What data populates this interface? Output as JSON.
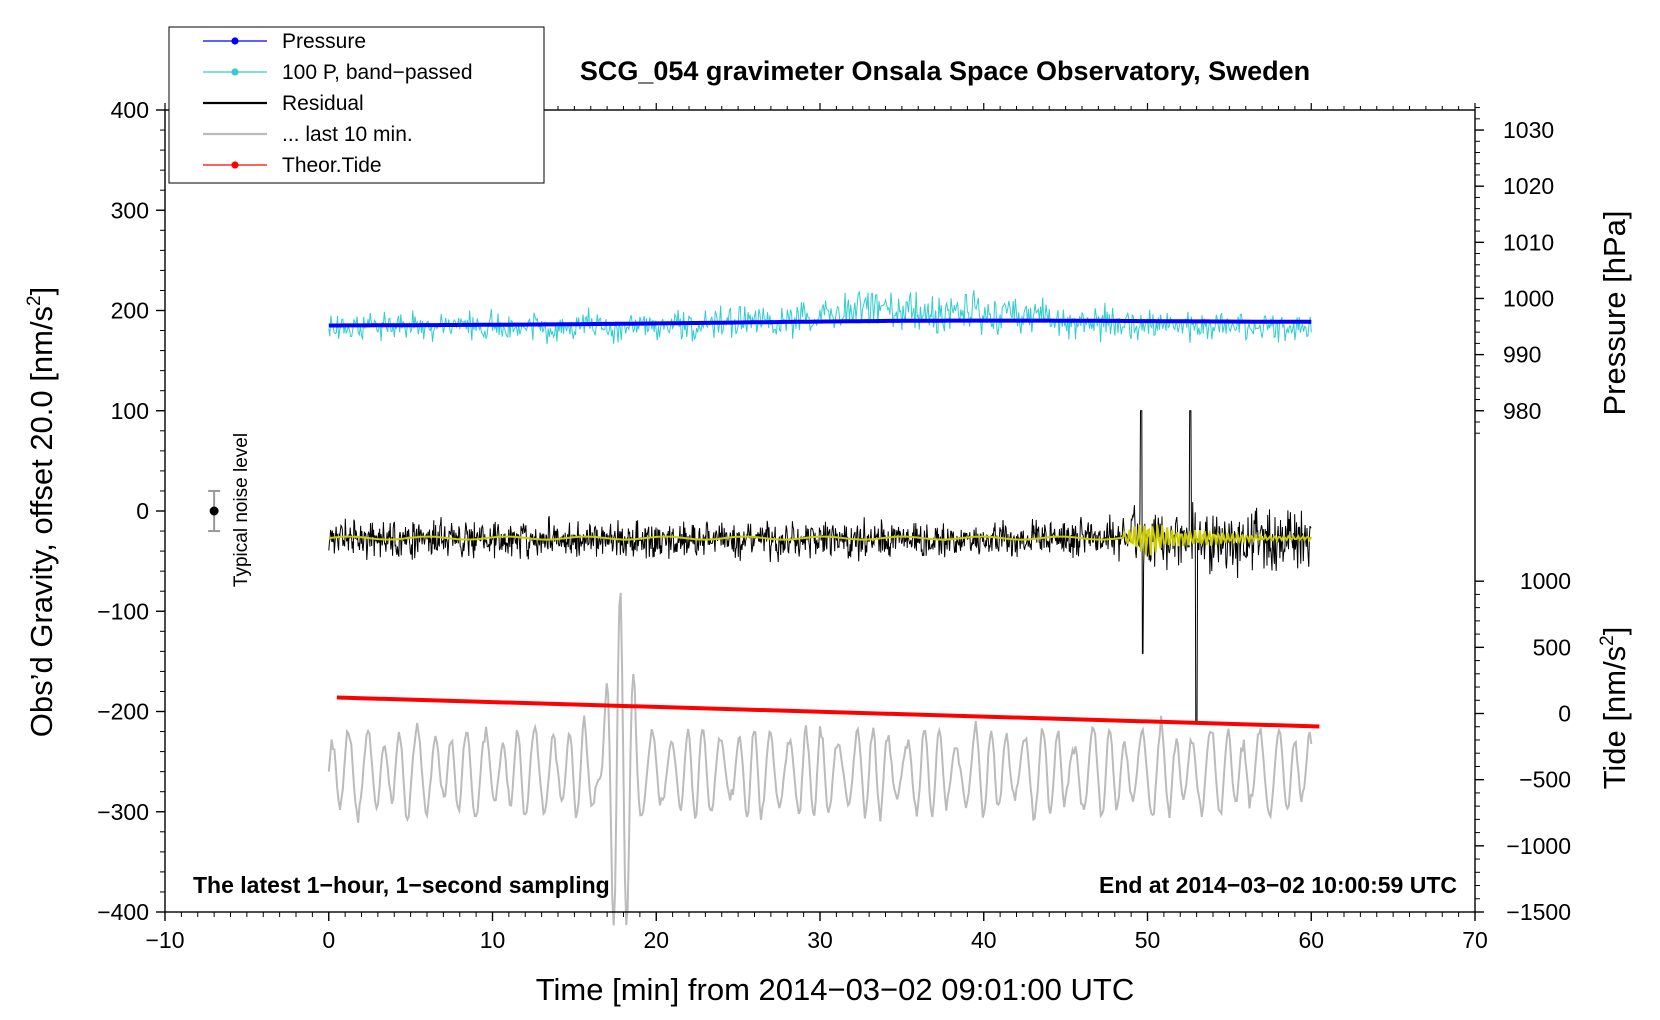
{
  "chart_data": {
    "type": "line",
    "title": "SCG_054 gravimeter Onsala Space Observatory, Sweden",
    "xlabel": "Time [min] from 2014−03−02 09:01:00 UTC",
    "ylabel": "Obs’d Gravity, offset 20.0 [nm/s²]",
    "ylabel_parts": {
      "main": "Obs’d Gravity, offset 20.0 [nm/s",
      "sup": "2",
      "end": "]"
    },
    "y2label": "Pressure [hPa]",
    "y3label_parts": {
      "main": "Tide [nm/s",
      "sup": "2",
      "end": "]"
    },
    "xlim": [
      -10,
      70
    ],
    "ylim": [
      -400,
      400
    ],
    "pressure_axis": {
      "range": [
        980,
        1030
      ],
      "maps_to_gravity": [
        100,
        380
      ]
    },
    "tide_axis": {
      "range": [
        -1500,
        1000
      ],
      "maps_to_gravity": [
        -400,
        -70
      ]
    },
    "x_ticks": [
      "−10",
      "0",
      "10",
      "20",
      "30",
      "40",
      "50",
      "60",
      "70"
    ],
    "y_ticks": [
      "400",
      "300",
      "200",
      "100",
      "0",
      "−100",
      "−200",
      "−300",
      "−400"
    ],
    "pressure_ticks": [
      "1030",
      "1020",
      "1010",
      "1000",
      "990",
      "980"
    ],
    "tide_ticks": [
      "1000",
      "500",
      "0",
      "−500",
      "−1000",
      "−1500"
    ],
    "legend": {
      "position": "top-left",
      "entries": [
        {
          "label": "Pressure",
          "color": "#0000ff",
          "marker": "dot"
        },
        {
          "label": "100 P, band−passed",
          "color": "#33cccc",
          "marker": "dot"
        },
        {
          "label": "Residual",
          "color": "#000000",
          "marker": "none"
        },
        {
          "label": "... last 10 min.",
          "color": "#bbbbbb",
          "marker": "none"
        },
        {
          "label": "Theor.Tide",
          "color": "#ff0000",
          "marker": "dot"
        }
      ]
    },
    "annotations": {
      "bottom_left": "The latest 1−hour, 1−second sampling",
      "bottom_right": "End at 2014−03−02 10:00:59 UTC",
      "noise_label": "Typical noise level"
    },
    "noise_bar": {
      "x": -7,
      "y": 0,
      "half_range": 20
    },
    "series": [
      {
        "name": "Pressure",
        "color": "#0000ff",
        "approx_shape": "pressure",
        "x_range": [
          0,
          60
        ],
        "y_start": 185,
        "y_end": 188
      },
      {
        "name": "100 P, band−passed",
        "color": "#33cccc",
        "approx_shape": "noisy-band",
        "x_range": [
          0,
          60
        ],
        "center": 190,
        "amplitude": 22
      },
      {
        "name": "Residual",
        "color": "#000000",
        "approx_shape": "noise",
        "x_range": [
          0,
          60
        ],
        "center": -28,
        "amplitude": 26,
        "spikes": [
          [
            49.6,
            100
          ],
          [
            49.7,
            -142
          ],
          [
            52.6,
            100
          ],
          [
            53.0,
            -212
          ]
        ]
      },
      {
        "name": "Residual smoothed",
        "color": "#cccc00",
        "approx_shape": "smooth",
        "x_range": [
          0,
          60
        ],
        "center": -27
      },
      {
        "name": "... last 10 min.",
        "color": "#bbbbbb",
        "approx_shape": "oscillation",
        "x_range": [
          0,
          60
        ],
        "center": -260,
        "amplitude": 45,
        "big_swings": [
          [
            16.8,
            -120
          ],
          [
            17.5,
            -370
          ],
          [
            18.3,
            -400
          ],
          [
            18.9,
            -135
          ]
        ]
      },
      {
        "name": "Theor.Tide",
        "color": "#ff0000",
        "approx_shape": "linear",
        "x_range": [
          0.5,
          60.5
        ],
        "y_start": -186,
        "y_end": -215
      }
    ]
  }
}
